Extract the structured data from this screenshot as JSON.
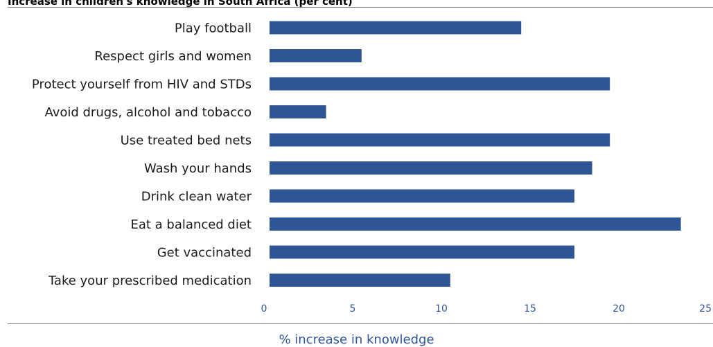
{
  "chart_data": {
    "type": "bar",
    "orientation": "horizontal",
    "title": "Increase in children's knowledge in South Africa (per cent)",
    "xlabel": "% increase in knowledge",
    "ylabel": "",
    "categories": [
      "Play football",
      "Respect girls and women",
      "Protect yourself from HIV and STDs",
      "Avoid drugs, alcohol and tobacco",
      "Use treated bed nets",
      "Wash your hands",
      "Drink clean water",
      "Eat a balanced diet",
      "Get vaccinated",
      "Take your prescribed medication"
    ],
    "values": [
      14.5,
      5.5,
      19.5,
      3.5,
      19.5,
      18.5,
      17.5,
      23.5,
      17.5,
      10.5
    ],
    "xlim": [
      0,
      25
    ],
    "xticks": [
      0,
      5,
      10,
      15,
      20,
      25
    ],
    "grid": false,
    "legend": "none",
    "bar_color": "#2f5597"
  }
}
